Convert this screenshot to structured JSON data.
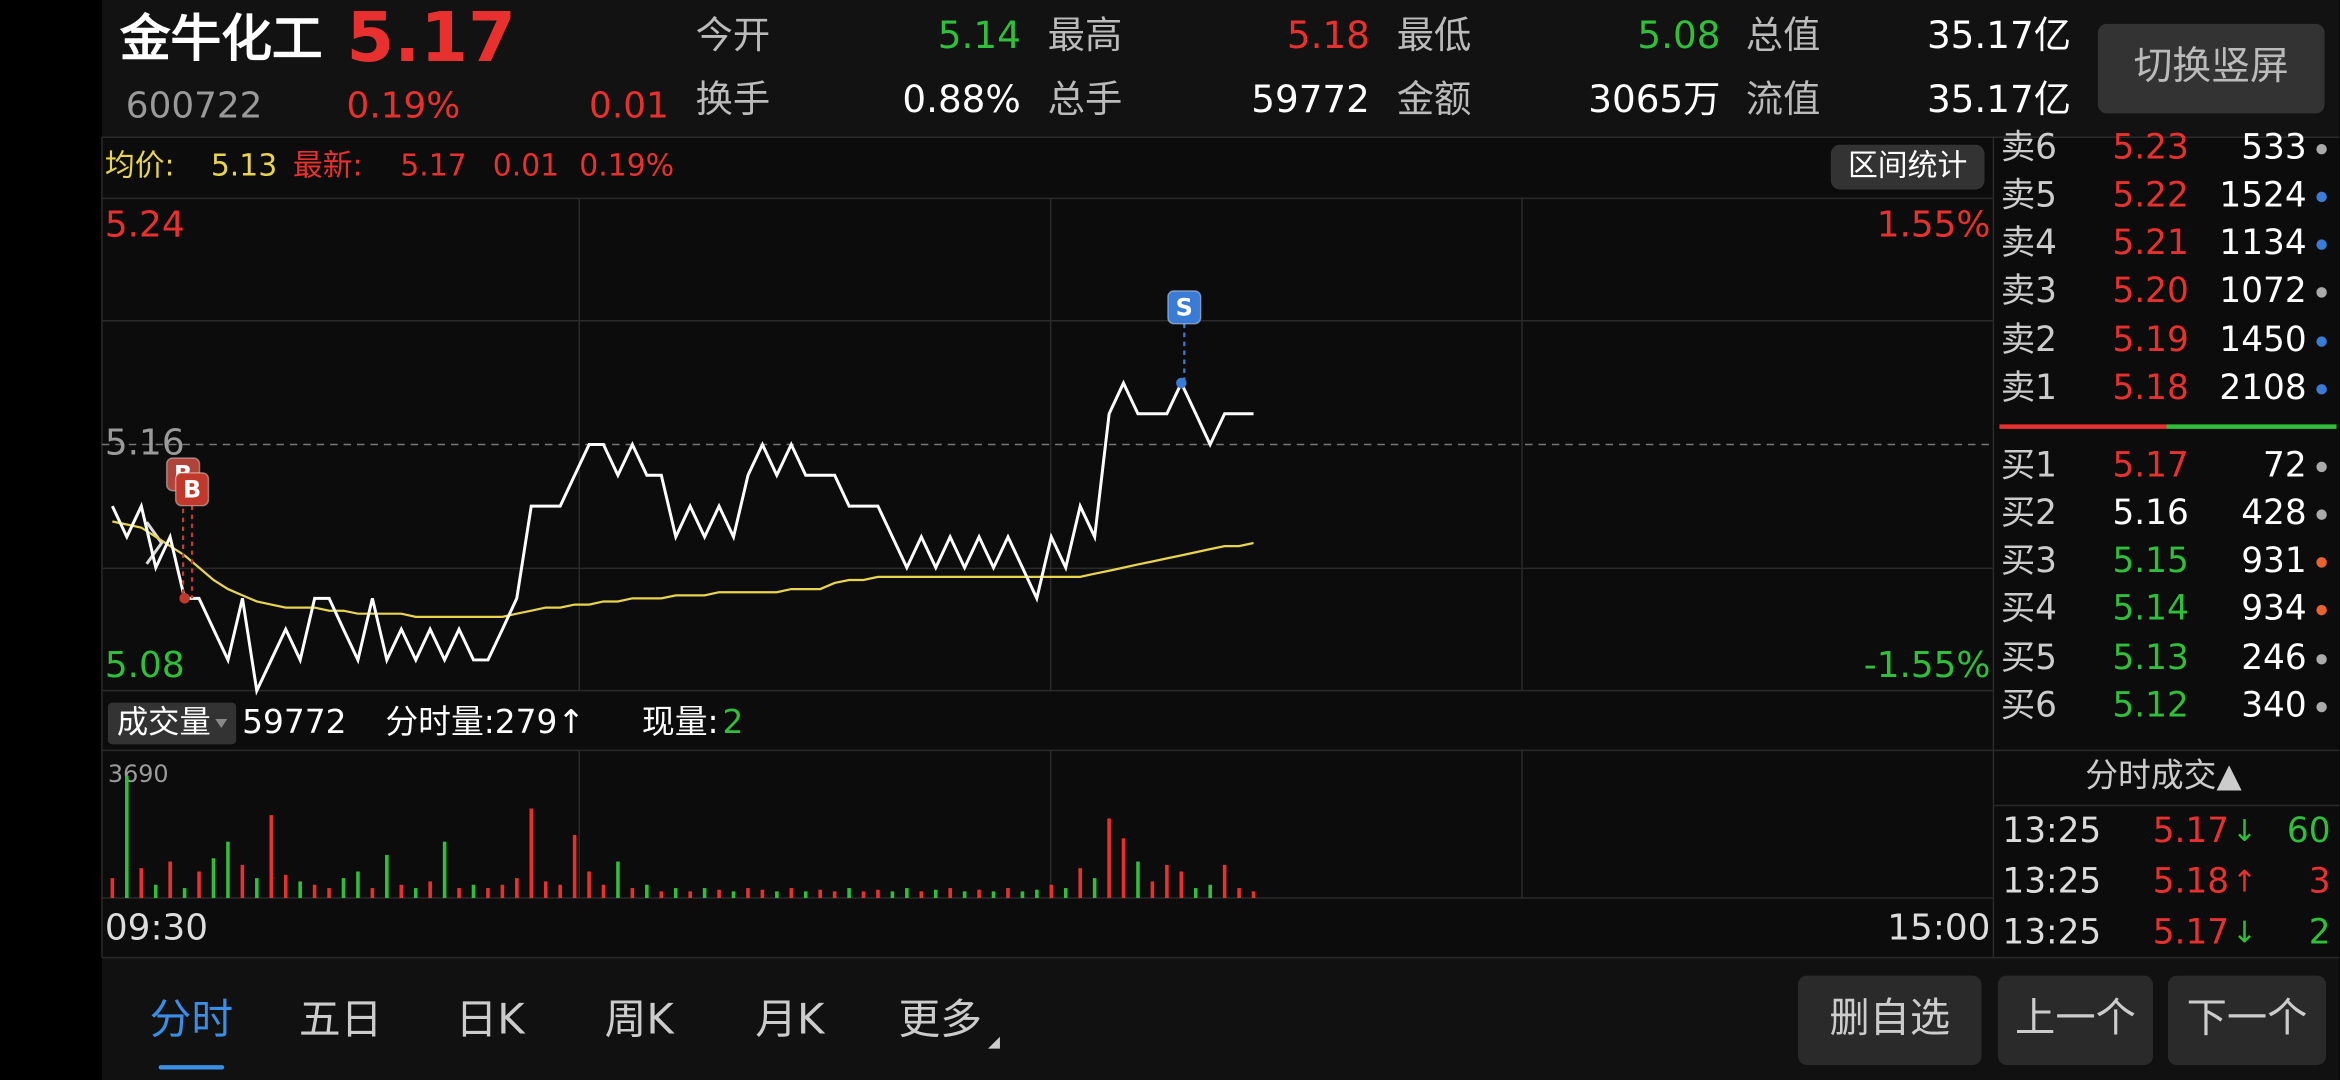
{
  "header": {
    "name": "金牛化工",
    "price": "5.17",
    "code": "600722",
    "change_pct": "0.19%",
    "change": "0.01",
    "stats": [
      {
        "label": "今开",
        "value": "5.14",
        "color": "#2fbf3a"
      },
      {
        "label": "最高",
        "value": "5.18",
        "color": "#e8312f"
      },
      {
        "label": "最低",
        "value": "5.08",
        "color": "#2fbf3a"
      },
      {
        "label": "总值",
        "value": "35.17亿",
        "color": "#ffffff"
      },
      {
        "label": "换手",
        "value": "0.88%",
        "color": "#ffffff"
      },
      {
        "label": "总手",
        "value": "59772",
        "color": "#ffffff"
      },
      {
        "label": "金额",
        "value": "3065万",
        "color": "#ffffff"
      },
      {
        "label": "流值",
        "value": "35.17亿",
        "color": "#ffffff"
      }
    ],
    "button": "切换竖屏"
  },
  "info_bar": {
    "avg_label": "均价:",
    "avg": "5.13",
    "latest_label": "最新:",
    "latest": "5.17",
    "latest_change": "0.01",
    "latest_pct": "0.19%",
    "button": "区间统计"
  },
  "chart_data": [
    {
      "type": "line",
      "ylim": [
        5.08,
        5.24
      ],
      "yticks": [
        5.24,
        5.16,
        5.08
      ],
      "ytick_colors": [
        "#e8312f",
        "#9a9a9a",
        "#2fbf3a"
      ],
      "y2lim": [
        -1.55,
        1.55
      ],
      "y2ticks": [
        {
          "value": 1.55,
          "label": "1.55%"
        },
        {
          "value": -1.55,
          "label": "-1.55%"
        }
      ],
      "y2tick_colors": [
        "#e8312f",
        "#2fbf3a"
      ],
      "series": [
        {
          "name": "最新",
          "color": "#ffffff",
          "values": [
            5.14,
            5.13,
            5.14,
            5.12,
            5.13,
            5.11,
            5.11,
            5.1,
            5.09,
            5.11,
            5.08,
            5.09,
            5.1,
            5.09,
            5.11,
            5.11,
            5.1,
            5.09,
            5.11,
            5.09,
            5.1,
            5.09,
            5.1,
            5.09,
            5.1,
            5.09,
            5.09,
            5.1,
            5.11,
            5.14,
            5.14,
            5.14,
            5.15,
            5.16,
            5.16,
            5.15,
            5.16,
            5.15,
            5.15,
            5.13,
            5.14,
            5.13,
            5.14,
            5.13,
            5.15,
            5.16,
            5.15,
            5.16,
            5.15,
            5.15,
            5.15,
            5.14,
            5.14,
            5.14,
            5.13,
            5.12,
            5.13,
            5.12,
            5.13,
            5.12,
            5.13,
            5.12,
            5.13,
            5.12,
            5.11,
            5.13,
            5.12,
            5.14,
            5.13,
            5.17,
            5.18,
            5.17,
            5.17,
            5.17,
            5.18,
            5.17,
            5.16,
            5.17,
            5.17,
            5.17
          ]
        },
        {
          "name": "均价",
          "color": "#e8d44d",
          "values": [
            5.135,
            5.134,
            5.133,
            5.13,
            5.127,
            5.124,
            5.12,
            5.116,
            5.113,
            5.111,
            5.109,
            5.108,
            5.107,
            5.107,
            5.107,
            5.106,
            5.106,
            5.105,
            5.105,
            5.105,
            5.105,
            5.104,
            5.104,
            5.104,
            5.104,
            5.104,
            5.104,
            5.104,
            5.105,
            5.106,
            5.107,
            5.107,
            5.108,
            5.108,
            5.109,
            5.109,
            5.11,
            5.11,
            5.11,
            5.111,
            5.111,
            5.111,
            5.112,
            5.112,
            5.112,
            5.112,
            5.112,
            5.113,
            5.113,
            5.113,
            5.115,
            5.116,
            5.116,
            5.117,
            5.117,
            5.117,
            5.117,
            5.117,
            5.117,
            5.117,
            5.117,
            5.117,
            5.117,
            5.117,
            5.117,
            5.117,
            5.117,
            5.117,
            5.118,
            5.119,
            5.12,
            5.121,
            5.122,
            5.123,
            5.124,
            5.125,
            5.126,
            5.127,
            5.127,
            5.128
          ]
        }
      ],
      "markers": [
        {
          "label": "S",
          "index": 74,
          "color": "#3a7bd5"
        },
        {
          "label": "B",
          "index": 5,
          "color": "#b0443a"
        },
        {
          "label": "B",
          "index": 5,
          "color": "#c0392b"
        }
      ]
    },
    {
      "type": "bar",
      "ylim": [
        0,
        3690
      ],
      "yticks": [
        3690
      ],
      "up_color": "#e8312f",
      "down_color": "#2fbf3a",
      "values": [
        600,
        3690,
        900,
        400,
        1100,
        300,
        800,
        1200,
        1700,
        1000,
        600,
        2500,
        700,
        500,
        400,
        300,
        600,
        800,
        300,
        1300,
        400,
        300,
        500,
        1700,
        300,
        400,
        300,
        400,
        600,
        2700,
        500,
        400,
        1900,
        800,
        400,
        1100,
        300,
        400,
        200,
        300,
        200,
        300,
        250,
        200,
        300,
        250,
        200,
        300,
        200,
        250,
        200,
        300,
        200,
        250,
        200,
        300,
        200,
        250,
        300,
        200,
        250,
        200,
        300,
        200,
        250,
        400,
        300,
        900,
        600,
        2400,
        1800,
        1100,
        500,
        1000,
        800,
        300,
        400,
        1000,
        300,
        200
      ],
      "x_labels": [
        "09:30",
        "15:00"
      ]
    }
  ],
  "volume_bar": {
    "label": "成交量",
    "total": "59772",
    "interval": "分时量:279↑",
    "current_label": "现量:",
    "current": "2"
  },
  "order_book": {
    "asks": [
      {
        "label": "卖6",
        "price": "5.23",
        "volume": "533",
        "price_color": "#e8312f",
        "dot": "#aaaaaa"
      },
      {
        "label": "卖5",
        "price": "5.22",
        "volume": "1524",
        "price_color": "#e8312f",
        "dot": "#3a7bd5"
      },
      {
        "label": "卖4",
        "price": "5.21",
        "volume": "1134",
        "price_color": "#e8312f",
        "dot": "#3a7bd5"
      },
      {
        "label": "卖3",
        "price": "5.20",
        "volume": "1072",
        "price_color": "#e8312f",
        "dot": "#aaaaaa"
      },
      {
        "label": "卖2",
        "price": "5.19",
        "volume": "1450",
        "price_color": "#e8312f",
        "dot": "#3a7bd5"
      },
      {
        "label": "卖1",
        "price": "5.18",
        "volume": "2108",
        "price_color": "#e8312f",
        "dot": "#3a7bd5"
      }
    ],
    "bids": [
      {
        "label": "买1",
        "price": "5.17",
        "volume": "72",
        "price_color": "#e8312f",
        "dot": "#aaaaaa"
      },
      {
        "label": "买2",
        "price": "5.16",
        "volume": "428",
        "price_color": "#ffffff",
        "dot": "#aaaaaa"
      },
      {
        "label": "买3",
        "price": "5.15",
        "volume": "931",
        "price_color": "#2fbf3a",
        "dot": "#e8632f"
      },
      {
        "label": "买4",
        "price": "5.14",
        "volume": "934",
        "price_color": "#2fbf3a",
        "dot": "#e8632f"
      },
      {
        "label": "买5",
        "price": "5.13",
        "volume": "246",
        "price_color": "#2fbf3a",
        "dot": "#aaaaaa"
      },
      {
        "label": "买6",
        "price": "5.12",
        "volume": "340",
        "price_color": "#2fbf3a",
        "dot": "#aaaaaa"
      }
    ]
  },
  "trades": {
    "title": "分时成交▲",
    "rows": [
      {
        "time": "13:25",
        "price": "5.17",
        "arrow": "↓",
        "volume": "60",
        "arrow_color": "#2fbf3a",
        "volume_color": "#2fbf3a"
      },
      {
        "time": "13:25",
        "price": "5.18",
        "arrow": "↑",
        "volume": "3",
        "arrow_color": "#e8312f",
        "volume_color": "#e8312f"
      },
      {
        "time": "13:25",
        "price": "5.17",
        "arrow": "↓",
        "volume": "2",
        "arrow_color": "#2fbf3a",
        "volume_color": "#2fbf3a"
      }
    ]
  },
  "tabs": [
    "分时",
    "五日",
    "日K",
    "周K",
    "月K",
    "更多"
  ],
  "actions": [
    "删自选",
    "上一个",
    "下一个"
  ]
}
